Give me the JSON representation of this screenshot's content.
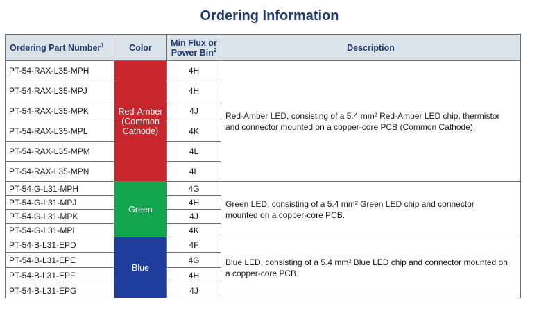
{
  "title": "Ordering Information",
  "headers": {
    "part_number": "Ordering Part Number",
    "part_number_note": "1",
    "color": "Color",
    "min_flux_line1": "Min Flux or",
    "min_flux_line2": "Power Bin",
    "min_flux_note": "2",
    "description": "Description"
  },
  "groups": [
    {
      "color_label_lines": [
        "Red-Amber",
        "(Common",
        "Cathode)"
      ],
      "color_hex": "#c7262c",
      "description_lines": [
        "Red-Amber LED, consisting of a 5.4 mm² Red-Amber LED chip, thermistor",
        "and connector mounted on a  copper-core PCB (Common Cathode)."
      ],
      "rows": [
        {
          "part": "PT-54-RAX-L35-MPH",
          "bin": "4H"
        },
        {
          "part": "PT-54-RAX-L35-MPJ",
          "bin": "4H"
        },
        {
          "part": "PT-54-RAX-L35-MPK",
          "bin": "4J"
        },
        {
          "part": "PT-54-RAX-L35-MPL",
          "bin": "4K"
        },
        {
          "part": "PT-54-RAX-L35-MPM",
          "bin": "4L"
        },
        {
          "part": "PT-54-RAX-L35-MPN",
          "bin": "4L"
        }
      ]
    },
    {
      "color_label_lines": [
        "Green"
      ],
      "color_hex": "#12a54e",
      "description_lines": [
        "Green LED,  consisting of a 5.4 mm² Green LED chip and connector",
        "mounted on a  copper-core PCB."
      ],
      "rows": [
        {
          "part": "PT-54-G-L31-MPH",
          "bin": "4G"
        },
        {
          "part": "PT-54-G-L31-MPJ",
          "bin": "4H"
        },
        {
          "part": "PT-54-G-L31-MPK",
          "bin": "4J"
        },
        {
          "part": "PT-54-G-L31-MPL",
          "bin": "4K"
        }
      ]
    },
    {
      "color_label_lines": [
        "Blue"
      ],
      "color_hex": "#1f3d9b",
      "description_lines": [
        "Blue LED, consisting of a 5.4 mm² Blue LED chip and connector mounted on",
        "a  copper-core PCB."
      ],
      "rows": [
        {
          "part": "PT-54-B-L31-EPD",
          "bin": "4F"
        },
        {
          "part": "PT-54-B-L31-EPE",
          "bin": "4G"
        },
        {
          "part": "PT-54-B-L31-EPF",
          "bin": "4H"
        },
        {
          "part": "PT-54-B-L31-EPG",
          "bin": "4J"
        }
      ]
    }
  ]
}
